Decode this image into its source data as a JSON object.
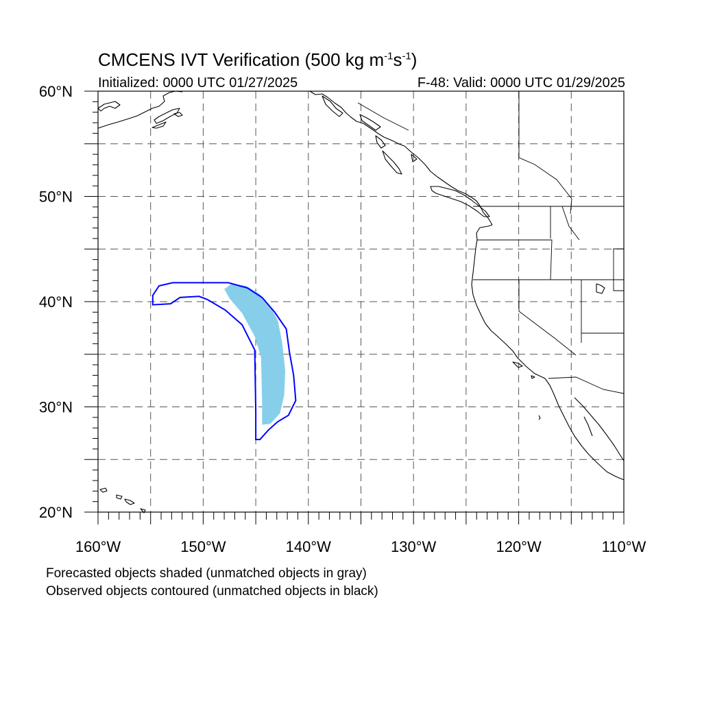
{
  "title": {
    "text": "CMCENS IVT Verification (500 kg m",
    "exp1": "-1",
    "mid": "s",
    "exp2": "-1",
    "close": ")"
  },
  "initialized": "Initialized: 0000 UTC 01/27/2025",
  "valid": "F-48: Valid: 0000 UTC 01/29/2025",
  "axes": {
    "lon_range": [
      -160,
      -110
    ],
    "lat_range": [
      20,
      60
    ],
    "lon_ticks": [
      {
        "value": -160,
        "label": "160°W"
      },
      {
        "value": -150,
        "label": "150°W"
      },
      {
        "value": -140,
        "label": "140°W"
      },
      {
        "value": -130,
        "label": "130°W"
      },
      {
        "value": -120,
        "label": "120°W"
      },
      {
        "value": -110,
        "label": "110°W"
      }
    ],
    "lat_ticks": [
      {
        "value": 20,
        "label": "20°N"
      },
      {
        "value": 30,
        "label": "30°N"
      },
      {
        "value": 40,
        "label": "40°N"
      },
      {
        "value": 50,
        "label": "50°N"
      },
      {
        "value": 60,
        "label": "60°N"
      }
    ],
    "gridline_spacing_deg": 5,
    "grid_style": "dashed"
  },
  "forecast_object": {
    "color": "#87ceeb",
    "lonlat": [
      [
        -147.3,
        41.7
      ],
      [
        -145.9,
        41.5
      ],
      [
        -144.6,
        40.7
      ],
      [
        -143.6,
        39.5
      ],
      [
        -142.9,
        38.2
      ],
      [
        -142.5,
        36.2
      ],
      [
        -142.2,
        33.4
      ],
      [
        -142.3,
        31.1
      ],
      [
        -142.7,
        29.4
      ],
      [
        -143.6,
        28.4
      ],
      [
        -144.4,
        28.3
      ],
      [
        -144.4,
        30.5
      ],
      [
        -144.5,
        34.7
      ],
      [
        -145.1,
        36.7
      ],
      [
        -146.3,
        38.9
      ],
      [
        -147.5,
        40.3
      ],
      [
        -148.0,
        41.2
      ]
    ]
  },
  "observed_object": {
    "color": "#0000ff",
    "lonlat": [
      [
        -154.8,
        40.6
      ],
      [
        -154.2,
        41.5
      ],
      [
        -152.9,
        41.8
      ],
      [
        -147.6,
        41.8
      ],
      [
        -145.8,
        41.3
      ],
      [
        -144.4,
        40.4
      ],
      [
        -143.2,
        39.0
      ],
      [
        -142.1,
        37.4
      ],
      [
        -141.8,
        35.2
      ],
      [
        -141.4,
        33.0
      ],
      [
        -141.2,
        30.6
      ],
      [
        -141.9,
        29.2
      ],
      [
        -142.9,
        28.6
      ],
      [
        -143.8,
        27.8
      ],
      [
        -144.6,
        26.9
      ],
      [
        -145.0,
        26.9
      ],
      [
        -145.0,
        29.6
      ],
      [
        -145.1,
        35.4
      ],
      [
        -146.3,
        37.8
      ],
      [
        -147.9,
        39.2
      ],
      [
        -149.6,
        40.2
      ],
      [
        -150.4,
        40.5
      ],
      [
        -152.2,
        40.4
      ],
      [
        -153.1,
        39.8
      ],
      [
        -154.8,
        39.7
      ]
    ]
  },
  "footer": {
    "line1": "Forecasted objects shaded (unmatched objects in gray)",
    "line2": "Observed objects contoured (unmatched objects in black)"
  }
}
